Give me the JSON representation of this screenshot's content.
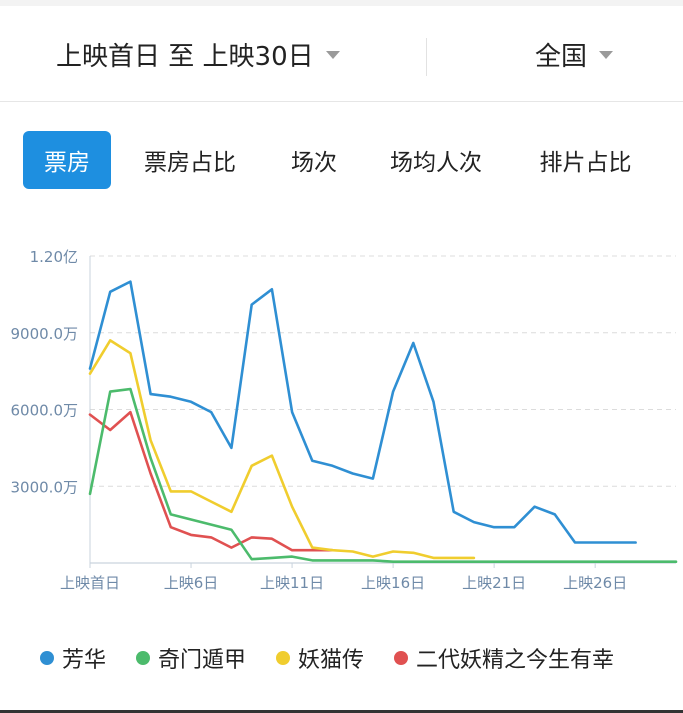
{
  "header": {
    "range_label": "上映首日 至 上映30日",
    "region_label": "全国"
  },
  "tabs": [
    {
      "label": "票房",
      "active": true
    },
    {
      "label": "票房占比",
      "active": false
    },
    {
      "label": "场次",
      "active": false
    },
    {
      "label": "场均人次",
      "active": false
    },
    {
      "label": "排片占比",
      "active": false
    }
  ],
  "chart_data": {
    "type": "line",
    "title": "",
    "xlabel": "",
    "ylabel": "",
    "x_tick_labels": [
      "上映首日",
      "上映6日",
      "上映11日",
      "上映16日",
      "上映21日",
      "上映26日"
    ],
    "x_tick_days": [
      1,
      6,
      11,
      16,
      21,
      26
    ],
    "xlim": [
      1,
      30
    ],
    "y_tick_labels": [
      "1.20亿",
      "9000.0万",
      "6000.0万",
      "3000.0万"
    ],
    "y_tick_values": [
      12000,
      9000,
      6000,
      3000
    ],
    "y_unit": "万",
    "ylim": [
      0,
      12000
    ],
    "grid": true,
    "legend_position": "bottom",
    "series": [
      {
        "name": "芳华",
        "color": "#2f8fd3",
        "days": [
          1,
          2,
          3,
          4,
          5,
          6,
          7,
          8,
          9,
          10,
          11,
          12,
          13,
          14,
          15,
          16,
          17,
          18,
          19,
          20,
          21,
          22,
          23,
          24,
          25,
          26,
          27,
          28
        ],
        "values": [
          7600,
          10600,
          11000,
          6600,
          6500,
          6300,
          5900,
          4500,
          10100,
          10700,
          5900,
          4000,
          3800,
          3500,
          3300,
          6700,
          8600,
          6300,
          2000,
          1600,
          1400,
          1400,
          2200,
          1900,
          800,
          800,
          800,
          800
        ]
      },
      {
        "name": "奇门遁甲",
        "color": "#4cbb6c",
        "days": [
          1,
          2,
          3,
          4,
          5,
          6,
          7,
          8,
          9,
          10,
          11,
          12,
          13,
          14,
          15,
          16,
          17,
          18,
          19,
          20,
          21,
          22,
          23,
          24,
          25,
          26,
          27,
          28,
          29,
          30
        ],
        "values": [
          2700,
          6700,
          6800,
          4100,
          1900,
          1700,
          1500,
          1300,
          150,
          200,
          250,
          100,
          100,
          100,
          100,
          50,
          50,
          50,
          50,
          50,
          50,
          50,
          50,
          50,
          50,
          50,
          50,
          50,
          50,
          50
        ]
      },
      {
        "name": "妖猫传",
        "color": "#f0cd2e",
        "days": [
          1,
          2,
          3,
          4,
          5,
          6,
          7,
          8,
          9,
          10,
          11,
          12,
          13,
          14,
          15,
          16,
          17,
          18,
          19,
          20
        ],
        "values": [
          7400,
          8700,
          8200,
          4800,
          2800,
          2800,
          2400,
          2000,
          3800,
          4200,
          2200,
          600,
          500,
          450,
          250,
          450,
          400,
          200,
          200,
          200
        ]
      },
      {
        "name": "二代妖精之今生有幸",
        "color": "#e05151",
        "days": [
          1,
          2,
          3,
          4,
          5,
          6,
          7,
          8,
          9,
          10,
          11,
          12,
          13
        ],
        "values": [
          5800,
          5200,
          5900,
          3500,
          1400,
          1100,
          1000,
          600,
          1000,
          950,
          500,
          500,
          500
        ]
      }
    ]
  }
}
